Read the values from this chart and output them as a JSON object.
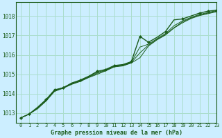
{
  "title": "Graphe pression niveau de la mer (hPa)",
  "background_color": "#cceeff",
  "grid_color": "#aaddcc",
  "line_color": "#1a5c1a",
  "xlim": [
    -0.5,
    23
  ],
  "ylim": [
    1012.5,
    1018.7
  ],
  "yticks": [
    1013,
    1014,
    1015,
    1016,
    1017,
    1018
  ],
  "xticks": [
    0,
    1,
    2,
    3,
    4,
    5,
    6,
    7,
    8,
    9,
    10,
    11,
    12,
    13,
    14,
    15,
    16,
    17,
    18,
    19,
    20,
    21,
    22,
    23
  ],
  "series": [
    [
      1012.75,
      1012.95,
      1013.3,
      1013.7,
      1014.2,
      1014.3,
      1014.55,
      1014.7,
      1014.9,
      1015.15,
      1015.25,
      1015.45,
      1015.5,
      1015.65,
      1016.95,
      1016.65,
      1016.9,
      1017.2,
      1017.8,
      1017.85,
      1018.0,
      1018.15,
      1018.25,
      1018.3
    ],
    [
      1012.75,
      1012.95,
      1013.25,
      1013.65,
      1014.15,
      1014.3,
      1014.5,
      1014.65,
      1014.85,
      1015.05,
      1015.2,
      1015.4,
      1015.45,
      1015.6,
      1016.1,
      1016.5,
      1016.8,
      1017.05,
      1017.4,
      1017.7,
      1017.9,
      1018.05,
      1018.15,
      1018.25
    ],
    [
      1012.75,
      1012.95,
      1013.28,
      1013.68,
      1014.18,
      1014.32,
      1014.52,
      1014.67,
      1014.87,
      1015.1,
      1015.22,
      1015.42,
      1015.47,
      1015.62,
      1016.4,
      1016.55,
      1016.83,
      1017.1,
      1017.5,
      1017.75,
      1017.93,
      1018.08,
      1018.18,
      1018.28
    ],
    [
      1012.75,
      1012.95,
      1013.22,
      1013.62,
      1014.12,
      1014.28,
      1014.48,
      1014.63,
      1014.83,
      1015.0,
      1015.18,
      1015.38,
      1015.43,
      1015.58,
      1015.85,
      1016.45,
      1016.77,
      1017.02,
      1017.38,
      1017.65,
      1017.87,
      1018.02,
      1018.12,
      1018.22
    ]
  ],
  "marker_indices": [
    0,
    1,
    3,
    4,
    5,
    7,
    9,
    10,
    11,
    13,
    14,
    15,
    17,
    19,
    21,
    22,
    23
  ]
}
